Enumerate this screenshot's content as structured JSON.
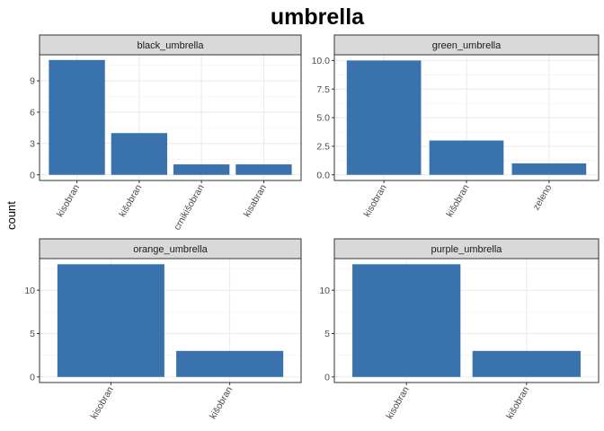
{
  "chart_data": {
    "type": "bar",
    "title": "umbrella",
    "ylabel": "count",
    "xlabel": "",
    "bar_color": "#3a72ad",
    "panels": [
      {
        "name": "black_umbrella",
        "categories": [
          "kisobran",
          "kišobran",
          "crnikišobran",
          "kisabran"
        ],
        "values": [
          11,
          4,
          1,
          1
        ],
        "ylim": [
          0,
          11.5
        ],
        "yticks": [
          0,
          3,
          6,
          9
        ],
        "ytick_labels": [
          "0",
          "3",
          "6",
          "9"
        ]
      },
      {
        "name": "green_umbrella",
        "categories": [
          "kisobran",
          "kišobran",
          "zeleno"
        ],
        "values": [
          10,
          3,
          1
        ],
        "ylim": [
          0,
          10.5
        ],
        "yticks": [
          0,
          2.5,
          5,
          7.5,
          10
        ],
        "ytick_labels": [
          "0.0",
          "2.5",
          "5.0",
          "7.5",
          "10.0"
        ]
      },
      {
        "name": "orange_umbrella",
        "categories": [
          "kisobran",
          "kišobran"
        ],
        "values": [
          13,
          3
        ],
        "ylim": [
          0,
          13.65
        ],
        "yticks": [
          0,
          5,
          10
        ],
        "ytick_labels": [
          "0",
          "5",
          "10"
        ]
      },
      {
        "name": "purple_umbrella",
        "categories": [
          "kisobran",
          "kišobran"
        ],
        "values": [
          13,
          3
        ],
        "ylim": [
          0,
          13.65
        ],
        "yticks": [
          0,
          5,
          10
        ],
        "ytick_labels": [
          "0",
          "5",
          "10"
        ]
      }
    ]
  }
}
